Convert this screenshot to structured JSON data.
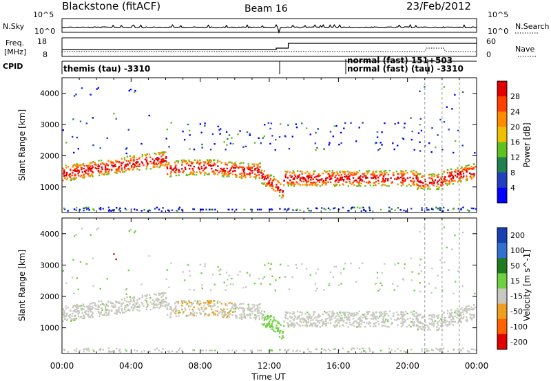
{
  "header": {
    "station": "Blackstone (fitACF)",
    "beam": "Beam 16",
    "date": "23/Feb/2012"
  },
  "side_labels": {
    "nsky": "N.Sky",
    "nsearch": "N.Search",
    "freq": "Freq.",
    "freq_unit": "[MHz]",
    "nave": "Nave",
    "cpid": "CPID"
  },
  "strip_ticks": {
    "nsky_left": [
      "10^5",
      "10^0"
    ],
    "nsky_right": [
      "10^5",
      "10^0"
    ],
    "freq_left": [
      "18",
      "8"
    ],
    "freq_right": [
      "60",
      "0"
    ]
  },
  "cpid_labels": {
    "left": "themis (tau) -3310",
    "right_top": "normal (fast) 151+503",
    "right_bottom": "normal (fast) (tau) -3310"
  },
  "chart_data": [
    {
      "type": "heatmap",
      "panel": "power",
      "ylabel": "Slant Range [km]",
      "ylim": [
        180,
        4500
      ],
      "yticks": [
        1000,
        2000,
        3000,
        4000
      ],
      "xlim": [
        0,
        24
      ],
      "xticks": [
        "00:00",
        "04:00",
        "08:00",
        "12:00",
        "16:00",
        "20:00",
        "00:00"
      ],
      "colorbar": {
        "label": "Power [dB]",
        "ticks": [
          "28",
          "24",
          "20",
          "16",
          "12",
          "8",
          "4"
        ],
        "colors": [
          "#e00000",
          "#ff4000",
          "#ff8c00",
          "#f0c000",
          "#60c020",
          "#208050",
          "#2040c0",
          "#0000ff"
        ]
      }
    },
    {
      "type": "heatmap",
      "panel": "velocity",
      "ylabel": "Slant Range [km]",
      "ylim": [
        180,
        4500
      ],
      "yticks": [
        1000,
        2000,
        3000,
        4000
      ],
      "xlim": [
        0,
        24
      ],
      "xticks": [
        "00:00",
        "04:00",
        "08:00",
        "12:00",
        "16:00",
        "20:00",
        "00:00"
      ],
      "xlabel": "Time UT",
      "colorbar": {
        "label": "Velocity [m s^-1]",
        "ticks": [
          "200",
          "100",
          "50",
          "15",
          "-15",
          "-50",
          "-100",
          "-200"
        ],
        "colors": [
          "#1840b0",
          "#3070d0",
          "#207a20",
          "#70d040",
          "#c8c8c0",
          "#f0a020",
          "#ff6000",
          "#e00000"
        ]
      }
    }
  ],
  "colors": {
    "axis": "#000000",
    "grey_scatter": "#c8c8c0",
    "dashed_marker": "#999999"
  }
}
